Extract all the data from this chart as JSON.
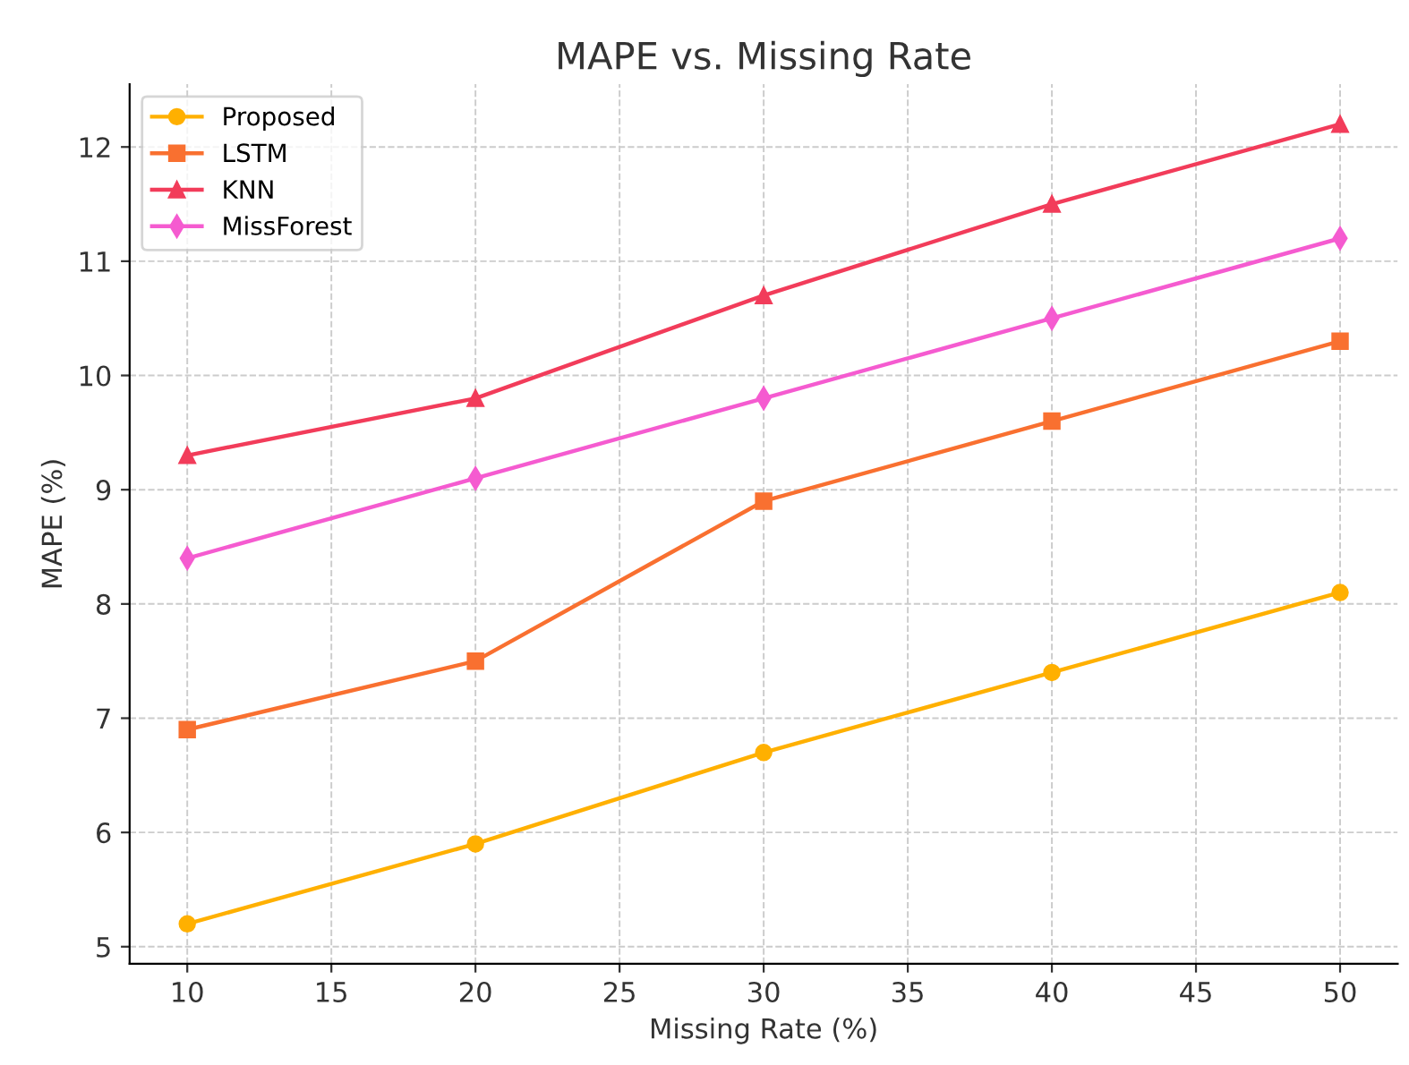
{
  "chart_data": {
    "type": "line",
    "title": "MAPE vs. Missing Rate",
    "xlabel": "Missing Rate (%)",
    "ylabel": "MAPE (%)",
    "x": [
      10,
      20,
      30,
      40,
      50
    ],
    "series": [
      {
        "name": "Proposed",
        "color": "#ffb000",
        "marker": "circle",
        "values": [
          5.2,
          5.9,
          6.7,
          7.4,
          8.1
        ]
      },
      {
        "name": "LSTM",
        "color": "#f97030",
        "marker": "square",
        "values": [
          6.9,
          7.5,
          8.9,
          9.6,
          10.3
        ]
      },
      {
        "name": "KNN",
        "color": "#f23c5a",
        "marker": "triangle",
        "values": [
          9.3,
          9.8,
          10.7,
          11.5,
          12.2
        ]
      },
      {
        "name": "MissForest",
        "color": "#f55bd0",
        "marker": "diamond",
        "values": [
          8.4,
          9.1,
          9.8,
          10.5,
          11.2
        ]
      }
    ],
    "xlim": [
      8,
      52
    ],
    "ylim": [
      4.85,
      12.55
    ],
    "xticks": [
      10,
      15,
      20,
      25,
      30,
      35,
      40,
      45,
      50
    ],
    "yticks": [
      5,
      6,
      7,
      8,
      9,
      10,
      11,
      12
    ],
    "grid": true,
    "legend": "top left",
    "line_style": "solid"
  }
}
